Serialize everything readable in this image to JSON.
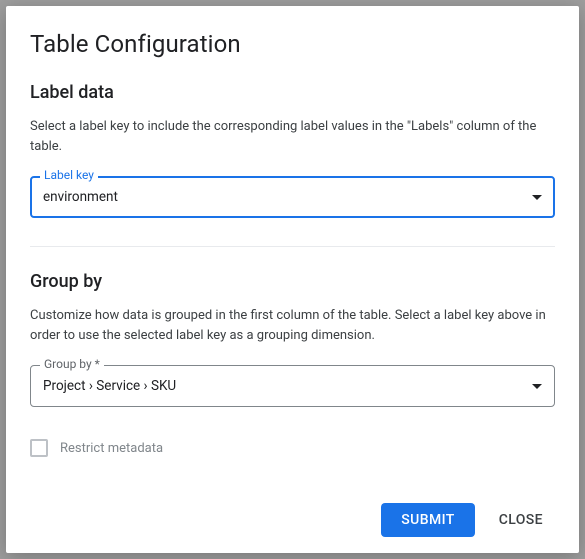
{
  "dialog": {
    "title": "Table Configuration"
  },
  "labelData": {
    "heading": "Label data",
    "description": "Select a label key to include the corresponding label values in the \"Labels\" column of the table.",
    "field": {
      "label": "Label key",
      "value": "environment"
    }
  },
  "groupBy": {
    "heading": "Group by",
    "description": "Customize how data is grouped in the first column of the table. Select a label key above in order to use the selected label key as a grouping dimension.",
    "field": {
      "label": "Group by *",
      "value": "Project › Service › SKU"
    }
  },
  "restrict": {
    "label": "Restrict metadata",
    "checked": false
  },
  "actions": {
    "submit": "Submit",
    "close": "Close"
  },
  "colors": {
    "primary": "#1a73e8",
    "text": "#202124",
    "muted": "#5f6368",
    "border": "#80868b",
    "divider": "#e8eaed"
  }
}
